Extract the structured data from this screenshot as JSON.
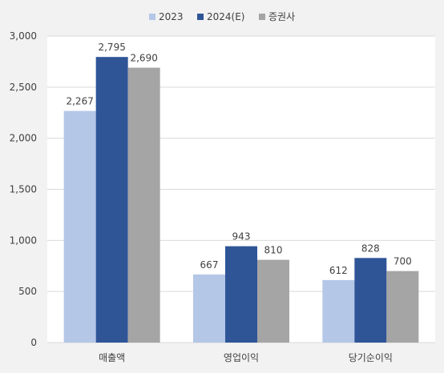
{
  "chart_data": {
    "type": "bar",
    "categories": [
      "매출액",
      "영업이익",
      "당기순이익"
    ],
    "series": [
      {
        "name": "2023",
        "values": [
          2267,
          667,
          612
        ],
        "color": "#b4c7e7"
      },
      {
        "name": "2024(E)",
        "values": [
          2795,
          943,
          828
        ],
        "color": "#2f5597"
      },
      {
        "name": "증권사",
        "values": [
          2690,
          810,
          700
        ],
        "color": "#a5a5a5"
      }
    ],
    "data_labels": [
      [
        "2,267",
        "667",
        "612"
      ],
      [
        "2,795",
        "943",
        "828"
      ],
      [
        "2,690",
        "810",
        "700"
      ]
    ],
    "y_ticks": [
      "0",
      "500",
      "1,000",
      "1,500",
      "2,000",
      "2,500",
      "3,000"
    ],
    "ylim": [
      0,
      3000
    ],
    "grid": true,
    "legend_position": "top-center",
    "title": "",
    "xlabel": "",
    "ylabel": ""
  }
}
